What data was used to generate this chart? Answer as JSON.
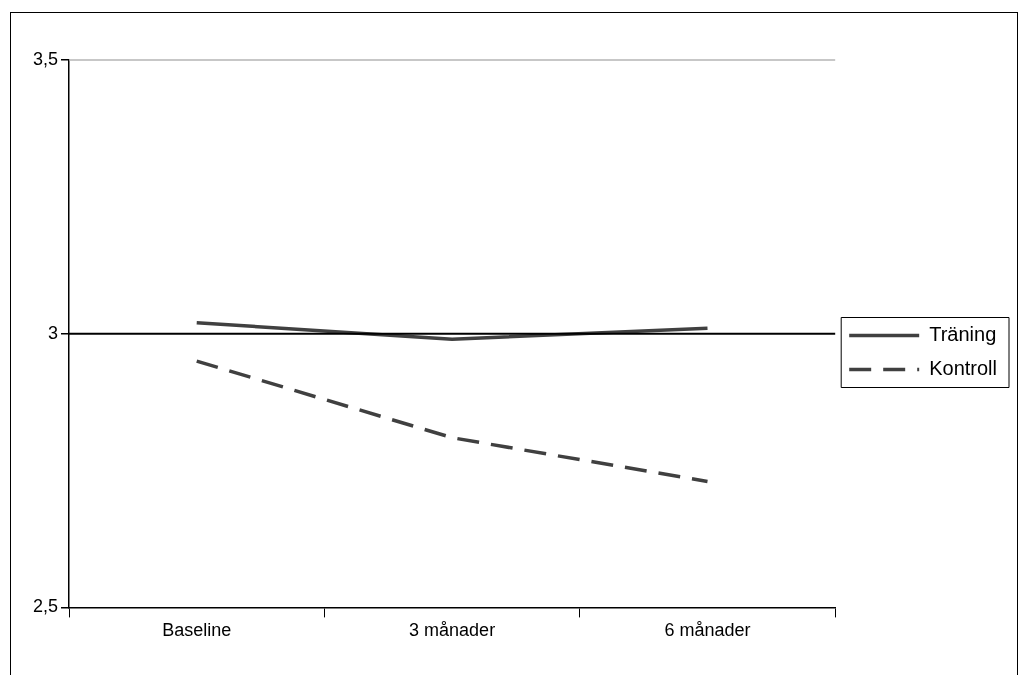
{
  "chart_data": {
    "type": "line",
    "categories": [
      "Baseline",
      "3 månader",
      "6 månader"
    ],
    "series": [
      {
        "name": "Träning",
        "color": "#404040",
        "values": [
          3.02,
          2.99,
          3.01
        ],
        "line_style": "solid"
      },
      {
        "name": "Kontroll",
        "color": "#404040",
        "values": [
          2.95,
          2.81,
          2.73
        ],
        "line_style": "dashed"
      }
    ],
    "ylim": [
      2.5,
      3.5
    ],
    "yticks": [
      {
        "value": 2.5,
        "label": "2,5"
      },
      {
        "value": 3,
        "label": "3"
      },
      {
        "value": 3.5,
        "label": "3,5"
      }
    ],
    "legend": "right",
    "marker": "none",
    "ref_lines": [
      {
        "axis": "y",
        "value": 3.5,
        "color": "#b4b4b4"
      },
      {
        "axis": "y",
        "value": 3,
        "color": "#000000"
      }
    ]
  }
}
